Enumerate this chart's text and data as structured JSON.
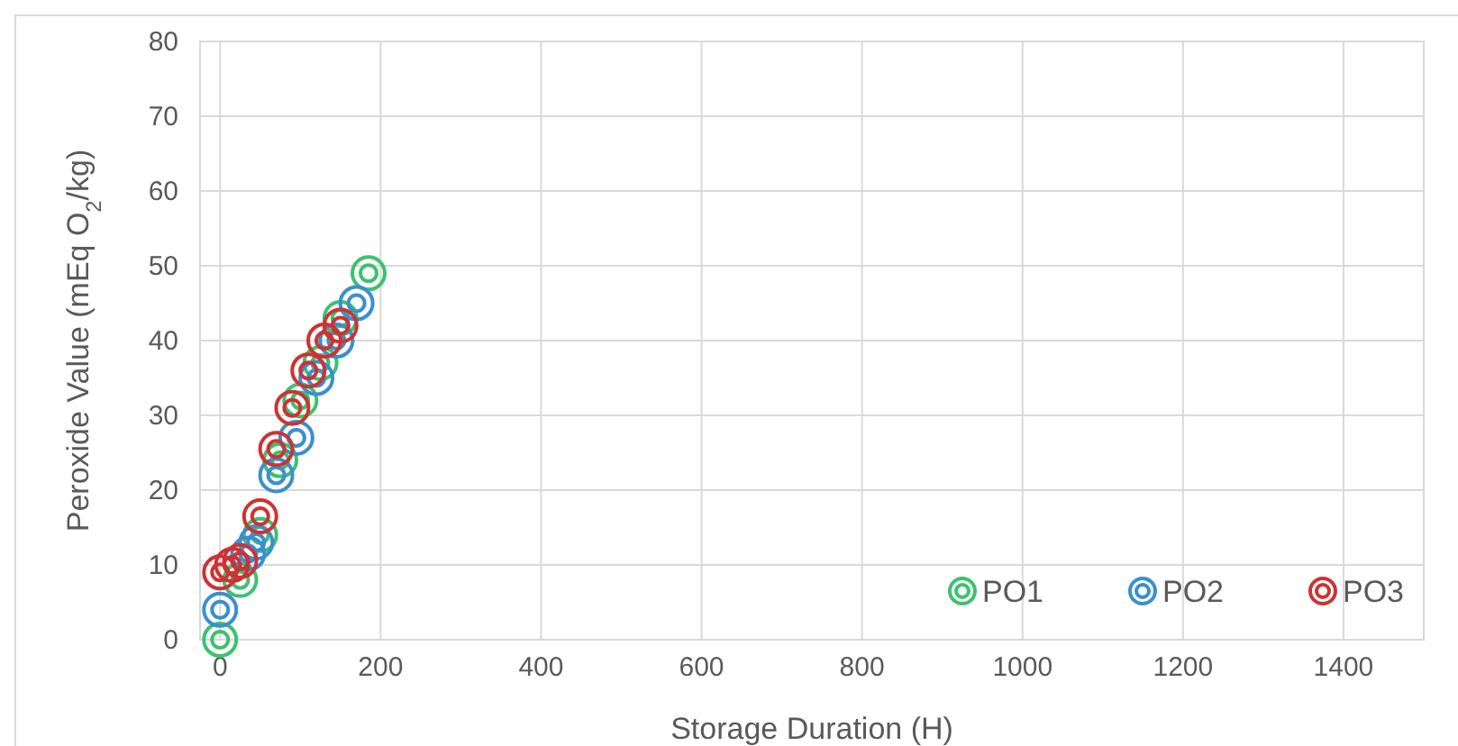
{
  "chart_data": {
    "type": "scatter",
    "xlabel": "Storage Duration (H)",
    "ylabel": "Peroxide Value (mEq O$_{2}$/kg)",
    "xlim": [
      -25,
      1500
    ],
    "xticks": [
      0,
      200,
      400,
      600,
      800,
      1000,
      1200,
      1400
    ],
    "ylim": [
      0,
      80
    ],
    "yticks": [
      0,
      10,
      20,
      30,
      40,
      50,
      60,
      70,
      80
    ],
    "grid": true,
    "legend": "bottom right",
    "marker": "circle",
    "series": [
      {
        "name": "PO1",
        "color": "#3cc26e",
        "x": [
          0,
          25,
          50,
          75,
          100,
          125,
          150,
          185
        ],
        "values": [
          0,
          8,
          14,
          24,
          32,
          37,
          43,
          49
        ]
      },
      {
        "name": "PO2",
        "color": "#3b8fd0",
        "x": [
          0,
          35,
          45,
          70,
          95,
          120,
          145,
          170
        ],
        "values": [
          4,
          11.5,
          13,
          22,
          27,
          35,
          40,
          45
        ]
      },
      {
        "name": "PO3",
        "color": "#cc3333",
        "x": [
          0,
          15,
          25,
          50,
          70,
          90,
          110,
          130,
          150
        ],
        "values": [
          9,
          10,
          10.5,
          16.5,
          25.5,
          31,
          36,
          40,
          42
        ]
      }
    ]
  }
}
